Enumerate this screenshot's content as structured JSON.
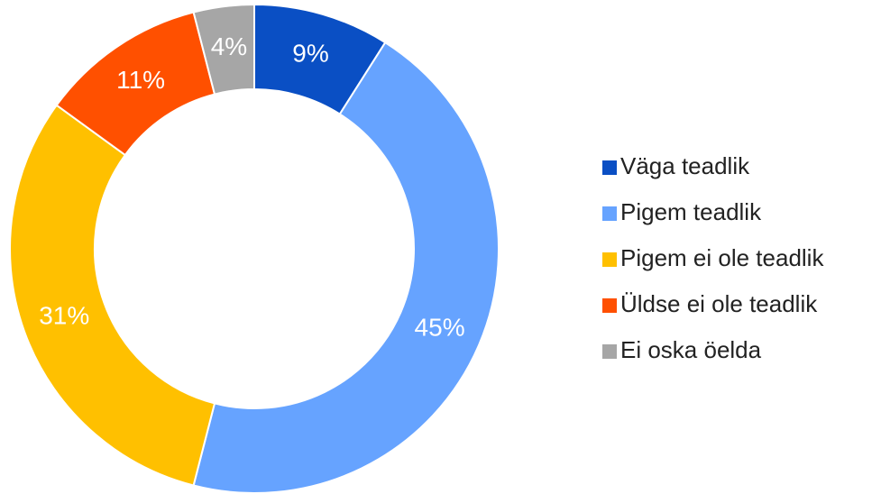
{
  "chart_data": {
    "type": "donut",
    "categories": [
      "Väga teadlik",
      "Pigem teadlik",
      "Pigem ei ole teadlik",
      "Üldse ei ole teadlik",
      "Ei oska öelda"
    ],
    "values": [
      9,
      45,
      31,
      11,
      4
    ],
    "value_labels": [
      "9%",
      "45%",
      "31%",
      "11%",
      "4%"
    ],
    "colors": [
      "#0a4fc4",
      "#66a3ff",
      "#ffc000",
      "#ff5000",
      "#a6a6a6"
    ],
    "legend": "right"
  }
}
